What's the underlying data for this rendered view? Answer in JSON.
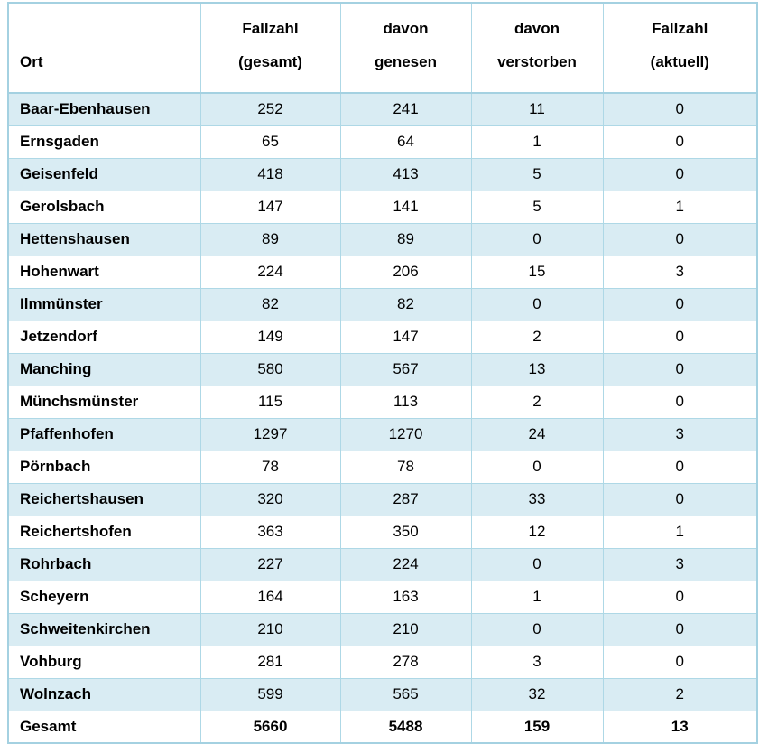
{
  "table": {
    "columns": [
      {
        "key": "ort",
        "line1": "Ort",
        "line2": ""
      },
      {
        "key": "gesamt",
        "line1": "Fallzahl",
        "line2": "(gesamt)"
      },
      {
        "key": "genesen",
        "line1": "davon",
        "line2": "genesen"
      },
      {
        "key": "verstorben",
        "line1": "davon",
        "line2": "verstorben"
      },
      {
        "key": "aktuell",
        "line1": "Fallzahl",
        "line2": "(aktuell)"
      }
    ],
    "colors": {
      "row_shaded_background": "#d9ecf3",
      "cell_border": "#aed8e6",
      "outer_border": "#a4d1e1",
      "text": "#000000"
    }
  },
  "chart_data": {
    "type": "table",
    "title": "",
    "columns": [
      "Ort",
      "Fallzahl (gesamt)",
      "davon genesen",
      "davon verstorben",
      "Fallzahl (aktuell)"
    ],
    "rows": [
      [
        "Baar-Ebenhausen",
        252,
        241,
        11,
        0
      ],
      [
        "Ernsgaden",
        65,
        64,
        1,
        0
      ],
      [
        "Geisenfeld",
        418,
        413,
        5,
        0
      ],
      [
        "Gerolsbach",
        147,
        141,
        5,
        1
      ],
      [
        "Hettenshausen",
        89,
        89,
        0,
        0
      ],
      [
        "Hohenwart",
        224,
        206,
        15,
        3
      ],
      [
        "Ilmmünster",
        82,
        82,
        0,
        0
      ],
      [
        "Jetzendorf",
        149,
        147,
        2,
        0
      ],
      [
        "Manching",
        580,
        567,
        13,
        0
      ],
      [
        "Münchsmünster",
        115,
        113,
        2,
        0
      ],
      [
        "Pfaffenhofen",
        1297,
        1270,
        24,
        3
      ],
      [
        "Pörnbach",
        78,
        78,
        0,
        0
      ],
      [
        "Reichertshausen",
        320,
        287,
        33,
        0
      ],
      [
        "Reichertshofen",
        363,
        350,
        12,
        1
      ],
      [
        "Rohrbach",
        227,
        224,
        0,
        3
      ],
      [
        "Scheyern",
        164,
        163,
        1,
        0
      ],
      [
        "Schweitenkirchen",
        210,
        210,
        0,
        0
      ],
      [
        "Vohburg",
        281,
        278,
        3,
        0
      ],
      [
        "Wolnzach",
        599,
        565,
        32,
        2
      ]
    ],
    "total": [
      "Gesamt",
      5660,
      5488,
      159,
      13
    ],
    "layout": {
      "striped": "odd-rows-shaded",
      "header_rule": "thick-bottom-border",
      "grid": true
    }
  }
}
